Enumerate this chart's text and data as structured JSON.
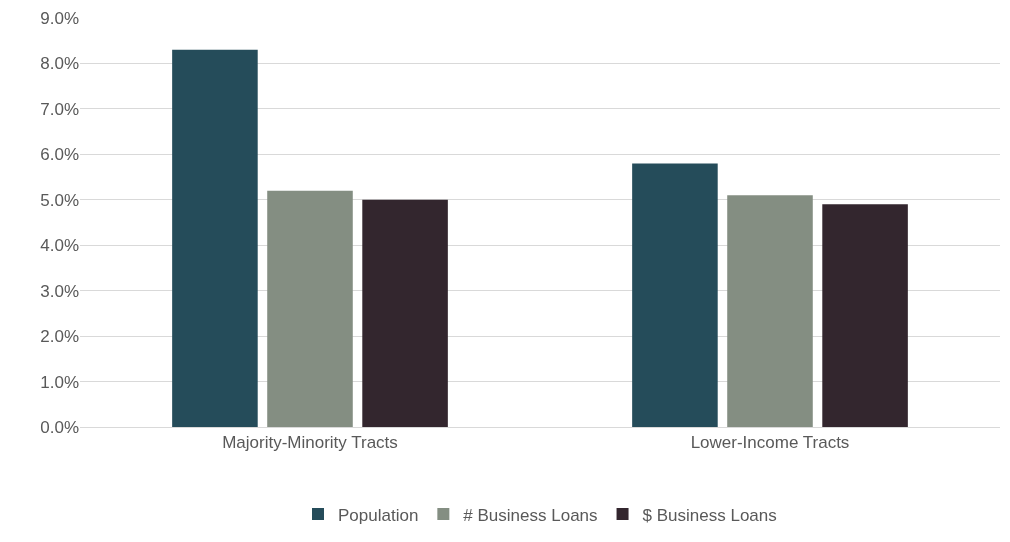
{
  "chart_data": {
    "type": "bar",
    "categories": [
      "Majority-Minority Tracts",
      "Lower-Income Tracts"
    ],
    "series": [
      {
        "name": "Population",
        "color": "#254c5a",
        "values": [
          8.3,
          5.8
        ]
      },
      {
        "name": "# Business Loans",
        "color": "#848e82",
        "values": [
          5.2,
          5.1
        ]
      },
      {
        "name": "$ Business Loans",
        "color": "#33262e",
        "values": [
          5.0,
          4.9
        ]
      }
    ],
    "ylim": [
      0,
      9
    ],
    "yticks": [
      {
        "value": 0,
        "label": "0.0%"
      },
      {
        "value": 1,
        "label": "1.0%"
      },
      {
        "value": 2,
        "label": "2.0%"
      },
      {
        "value": 3,
        "label": "3.0%"
      },
      {
        "value": 4,
        "label": "4.0%"
      },
      {
        "value": 5,
        "label": "5.0%"
      },
      {
        "value": 6,
        "label": "6.0%"
      },
      {
        "value": 7,
        "label": "7.0%"
      },
      {
        "value": 8,
        "label": "8.0%"
      },
      {
        "value": 9,
        "label": "9.0%"
      }
    ],
    "grid": "y",
    "legend": "bottom"
  }
}
